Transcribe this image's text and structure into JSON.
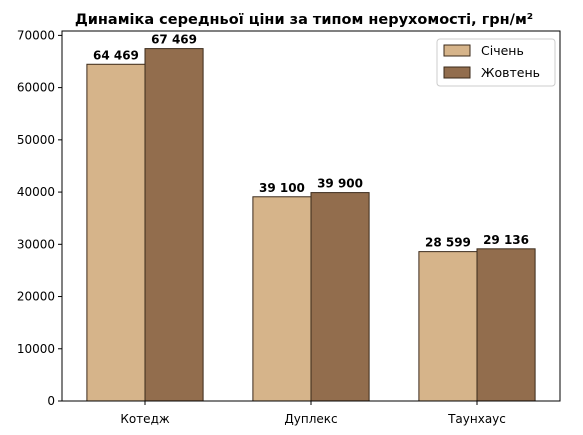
{
  "chart_data": {
    "type": "bar",
    "title": "Динаміка середньої ціни за типом нерухомості, грн/м²",
    "xlabel": "",
    "ylabel": "",
    "categories": [
      "Котедж",
      "Дуплекс",
      "Таунхаус"
    ],
    "series": [
      {
        "name": "Січень",
        "values": [
          64469,
          39100,
          28599
        ],
        "labels": [
          "64 469",
          "39 100",
          "28 599"
        ],
        "color": "#d6b48a"
      },
      {
        "name": "Жовтень",
        "values": [
          67469,
          39900,
          29136
        ],
        "labels": [
          "67 469",
          "39 900",
          "29 136"
        ],
        "color": "#926d4d"
      }
    ],
    "edge_color": "#3b2a1a",
    "ylim": [
      0,
      70840
    ],
    "yticks": [
      0,
      10000,
      20000,
      30000,
      40000,
      50000,
      60000,
      70000
    ],
    "ytick_labels": [
      "0",
      "10000",
      "20000",
      "30000",
      "40000",
      "50000",
      "60000",
      "70000"
    ],
    "grid": false,
    "legend_position": "top-right"
  }
}
